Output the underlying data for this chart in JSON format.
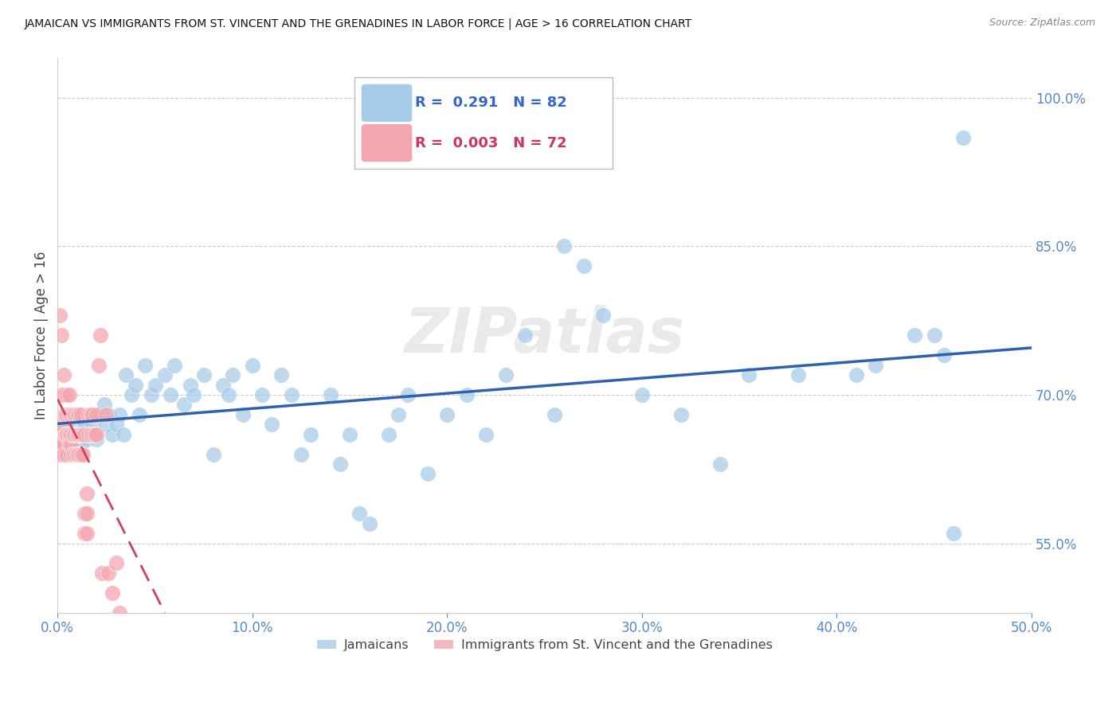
{
  "title": "JAMAICAN VS IMMIGRANTS FROM ST. VINCENT AND THE GRENADINES IN LABOR FORCE | AGE > 16 CORRELATION CHART",
  "source": "Source: ZipAtlas.com",
  "ylabel": "In Labor Force | Age > 16",
  "xlim": [
    0.0,
    0.5
  ],
  "ylim": [
    0.48,
    1.04
  ],
  "yticks": [
    0.55,
    0.7,
    0.85,
    1.0
  ],
  "ytick_labels": [
    "55.0%",
    "70.0%",
    "85.0%",
    "100.0%"
  ],
  "xticks": [
    0.0,
    0.1,
    0.2,
    0.3,
    0.4,
    0.5
  ],
  "xtick_labels": [
    "0.0%",
    "10.0%",
    "20.0%",
    "30.0%",
    "40.0%",
    "50.0%"
  ],
  "blue_R": "0.291",
  "blue_N": "82",
  "pink_R": "0.003",
  "pink_N": "72",
  "blue_color": "#a8cce8",
  "pink_color": "#f4a7b0",
  "blue_line_color": "#3060b0",
  "pink_line_color": "#d04060",
  "watermark": "ZIPatlas",
  "blue_scatter_x": [
    0.002,
    0.004,
    0.005,
    0.006,
    0.007,
    0.008,
    0.009,
    0.01,
    0.011,
    0.012,
    0.013,
    0.014,
    0.015,
    0.016,
    0.017,
    0.018,
    0.019,
    0.02,
    0.022,
    0.024,
    0.025,
    0.026,
    0.028,
    0.03,
    0.032,
    0.034,
    0.035,
    0.038,
    0.04,
    0.042,
    0.045,
    0.048,
    0.05,
    0.055,
    0.058,
    0.06,
    0.065,
    0.068,
    0.07,
    0.075,
    0.08,
    0.085,
    0.088,
    0.09,
    0.095,
    0.1,
    0.105,
    0.11,
    0.115,
    0.12,
    0.125,
    0.13,
    0.14,
    0.145,
    0.15,
    0.155,
    0.16,
    0.17,
    0.175,
    0.18,
    0.19,
    0.2,
    0.21,
    0.22,
    0.23,
    0.24,
    0.255,
    0.26,
    0.27,
    0.28,
    0.3,
    0.32,
    0.34,
    0.355,
    0.38,
    0.41,
    0.42,
    0.44,
    0.45,
    0.455,
    0.46,
    0.465
  ],
  "blue_scatter_y": [
    0.66,
    0.67,
    0.65,
    0.68,
    0.66,
    0.67,
    0.65,
    0.68,
    0.66,
    0.65,
    0.665,
    0.67,
    0.655,
    0.66,
    0.68,
    0.67,
    0.66,
    0.655,
    0.68,
    0.69,
    0.67,
    0.68,
    0.66,
    0.67,
    0.68,
    0.66,
    0.72,
    0.7,
    0.71,
    0.68,
    0.73,
    0.7,
    0.71,
    0.72,
    0.7,
    0.73,
    0.69,
    0.71,
    0.7,
    0.72,
    0.64,
    0.71,
    0.7,
    0.72,
    0.68,
    0.73,
    0.7,
    0.67,
    0.72,
    0.7,
    0.64,
    0.66,
    0.7,
    0.63,
    0.66,
    0.58,
    0.57,
    0.66,
    0.68,
    0.7,
    0.62,
    0.68,
    0.7,
    0.66,
    0.72,
    0.76,
    0.68,
    0.85,
    0.83,
    0.78,
    0.7,
    0.68,
    0.63,
    0.72,
    0.72,
    0.72,
    0.73,
    0.76,
    0.76,
    0.74,
    0.56,
    0.96
  ],
  "pink_scatter_x": [
    0.001,
    0.001,
    0.001,
    0.002,
    0.002,
    0.002,
    0.002,
    0.003,
    0.003,
    0.003,
    0.003,
    0.003,
    0.004,
    0.004,
    0.004,
    0.004,
    0.005,
    0.005,
    0.005,
    0.005,
    0.005,
    0.006,
    0.006,
    0.006,
    0.006,
    0.007,
    0.007,
    0.007,
    0.007,
    0.008,
    0.008,
    0.008,
    0.008,
    0.009,
    0.009,
    0.009,
    0.01,
    0.01,
    0.01,
    0.01,
    0.01,
    0.011,
    0.011,
    0.011,
    0.012,
    0.012,
    0.012,
    0.013,
    0.013,
    0.014,
    0.014,
    0.014,
    0.015,
    0.015,
    0.015,
    0.016,
    0.016,
    0.017,
    0.017,
    0.018,
    0.018,
    0.019,
    0.02,
    0.02,
    0.021,
    0.022,
    0.023,
    0.025,
    0.026,
    0.028,
    0.03,
    0.032
  ],
  "pink_scatter_y": [
    0.78,
    0.66,
    0.64,
    0.76,
    0.7,
    0.67,
    0.65,
    0.72,
    0.68,
    0.7,
    0.65,
    0.64,
    0.68,
    0.66,
    0.68,
    0.66,
    0.7,
    0.66,
    0.68,
    0.64,
    0.66,
    0.66,
    0.65,
    0.68,
    0.7,
    0.65,
    0.66,
    0.68,
    0.64,
    0.66,
    0.68,
    0.64,
    0.66,
    0.66,
    0.68,
    0.64,
    0.68,
    0.66,
    0.64,
    0.66,
    0.64,
    0.68,
    0.66,
    0.64,
    0.66,
    0.64,
    0.68,
    0.66,
    0.64,
    0.66,
    0.56,
    0.58,
    0.6,
    0.56,
    0.58,
    0.66,
    0.68,
    0.66,
    0.68,
    0.66,
    0.68,
    0.66,
    0.66,
    0.68,
    0.73,
    0.76,
    0.52,
    0.68,
    0.52,
    0.5,
    0.53,
    0.48
  ]
}
